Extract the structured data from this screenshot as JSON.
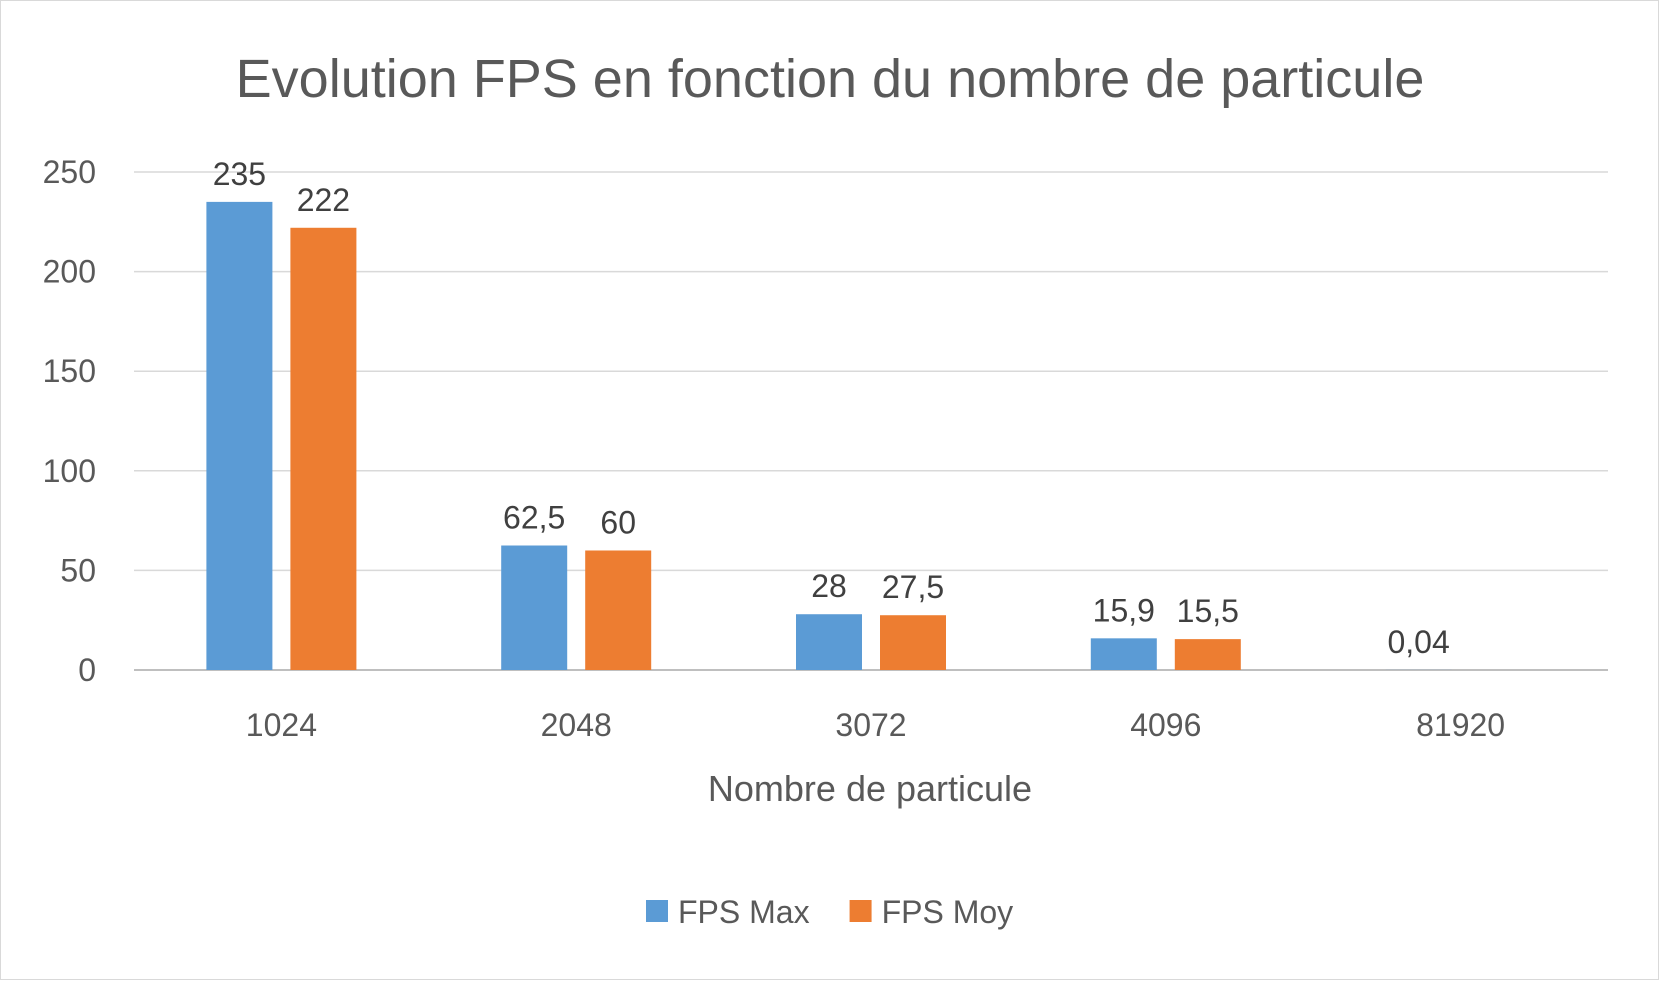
{
  "chart_data": {
    "type": "bar",
    "title": "Evolution FPS en fonction du nombre de particule",
    "xlabel": "Nombre de particule",
    "ylabel": "",
    "categories": [
      "1024",
      "2048",
      "3072",
      "4096",
      "81920"
    ],
    "series": [
      {
        "name": "FPS Max",
        "color": "#5b9bd5",
        "values": [
          235,
          62.5,
          28,
          15.9,
          0.04
        ],
        "labels": [
          "235",
          "62,5",
          "28",
          "15,9",
          "0,04"
        ]
      },
      {
        "name": "FPS Moy",
        "color": "#ed7d31",
        "values": [
          222,
          60,
          27.5,
          15.5,
          null
        ],
        "labels": [
          "222",
          "60",
          "27,5",
          "15,5",
          ""
        ]
      }
    ],
    "ylim": [
      0,
      250
    ],
    "yticks": [
      0,
      50,
      100,
      150,
      200,
      250
    ],
    "grid": true,
    "legend_position": "bottom"
  }
}
